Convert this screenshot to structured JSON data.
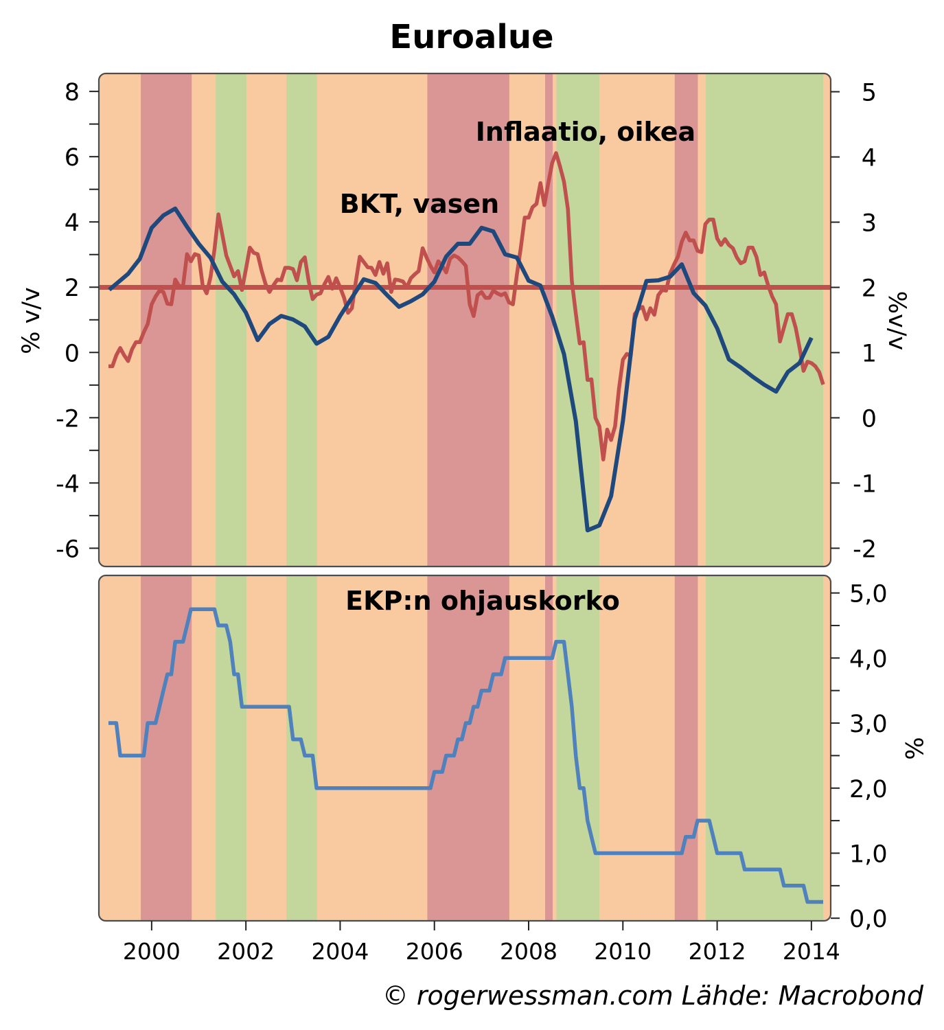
{
  "title": "Euroalue",
  "footer": "© rogerwessman.com Lähde: Macrobond",
  "chart_data": [
    {
      "type": "line",
      "panel": "upper",
      "title": "Euroalue",
      "grid": false,
      "xlim": [
        1998.88,
        2014.41
      ],
      "y_left": {
        "label": "% v/v",
        "lim": [
          -6.56,
          8.55
        ],
        "ticks": [
          -6,
          -4,
          -2,
          0,
          2,
          4,
          6,
          8
        ],
        "tick_labels": [
          "-6",
          "-4",
          "-2",
          "0",
          "2",
          "4",
          "6",
          "8"
        ],
        "minor_ticks": [
          -5,
          -3,
          -1,
          1,
          3,
          5,
          7
        ]
      },
      "y_right": {
        "label": "%v/v",
        "lim": [
          -2.28,
          5.28
        ],
        "ticks": [
          -2,
          -1,
          0,
          1,
          2,
          3,
          4,
          5
        ],
        "tick_labels": [
          "-2",
          "-1",
          "0",
          "1",
          "2",
          "3",
          "4",
          "5"
        ]
      },
      "annotations": [
        {
          "text": "Inflaatio, oikea",
          "color": "#C0504D"
        },
        {
          "text": "BKT, vasen",
          "color": "#1F497D"
        }
      ],
      "reference_lines": [
        {
          "axis": "right",
          "value": 2.0,
          "color": "#C0504D"
        }
      ],
      "series": [
        {
          "name": "BKT, vasen",
          "axis": "left",
          "color": "#1F497D",
          "frequency": "quarterly",
          "x": [
            1999.1,
            1999.5,
            1999.75,
            2000.0,
            2000.25,
            2000.5,
            2000.75,
            2001.0,
            2001.25,
            2001.5,
            2001.75,
            2002.0,
            2002.25,
            2002.5,
            2002.75,
            2003.0,
            2003.25,
            2003.5,
            2003.75,
            2004.0,
            2004.25,
            2004.5,
            2004.75,
            2005.0,
            2005.25,
            2005.5,
            2005.75,
            2006.0,
            2006.25,
            2006.5,
            2006.75,
            2007.0,
            2007.25,
            2007.5,
            2007.75,
            2008.0,
            2008.25,
            2008.5,
            2008.75,
            2009.0,
            2009.25,
            2009.5,
            2009.75,
            2010.0,
            2010.25,
            2010.5,
            2010.75,
            2011.0,
            2011.25,
            2011.5,
            2011.75,
            2012.0,
            2012.25,
            2012.5,
            2012.75,
            2013.0,
            2013.25,
            2013.5,
            2013.75,
            2014.0
          ],
          "y": [
            1.92,
            2.41,
            2.87,
            3.82,
            4.2,
            4.41,
            3.85,
            3.33,
            2.9,
            2.17,
            1.78,
            1.22,
            0.38,
            0.87,
            1.12,
            1.01,
            0.8,
            0.27,
            0.48,
            1.12,
            1.68,
            2.24,
            2.13,
            1.75,
            1.4,
            1.57,
            1.78,
            2.17,
            2.94,
            3.33,
            3.33,
            3.82,
            3.71,
            3.01,
            2.91,
            2.2,
            2.05,
            1.1,
            -0.05,
            -2.1,
            -5.45,
            -5.3,
            -4.4,
            -2.1,
            1.02,
            2.19,
            2.21,
            2.32,
            2.7,
            1.82,
            1.44,
            0.74,
            -0.21,
            -0.46,
            -0.74,
            -0.99,
            -1.2,
            -0.6,
            -0.32,
            0.45
          ]
        },
        {
          "name": "Inflaatio, oikea",
          "axis": "right",
          "color": "#C0504D",
          "frequency": "monthly",
          "start": "1999-01",
          "values": [
            0.79,
            0.79,
            0.96,
            1.07,
            0.96,
            0.87,
            1.05,
            1.16,
            1.16,
            1.31,
            1.44,
            1.74,
            1.86,
            1.95,
            1.93,
            1.75,
            1.74,
            2.12,
            2.02,
            2.02,
            2.51,
            2.4,
            2.51,
            2.49,
            2.03,
            1.91,
            2.16,
            2.58,
            3.12,
            2.81,
            2.49,
            2.33,
            2.17,
            2.25,
            1.96,
            2.28,
            2.61,
            2.53,
            2.51,
            2.26,
            2.05,
            1.93,
            2.03,
            2.12,
            2.11,
            2.3,
            2.3,
            2.28,
            2.11,
            2.39,
            2.46,
            2.09,
            1.82,
            1.89,
            1.91,
            2.05,
            2.16,
            1.98,
            2.14,
            2.0,
            1.84,
            1.61,
            1.68,
            2.09,
            2.47,
            2.39,
            2.31,
            2.3,
            2.19,
            2.39,
            2.21,
            2.37,
            1.93,
            2.12,
            2.11,
            2.09,
            2.0,
            2.14,
            2.2,
            2.25,
            2.6,
            2.46,
            2.33,
            2.23,
            2.4,
            2.33,
            2.23,
            2.44,
            2.49,
            2.46,
            2.4,
            2.33,
            1.74,
            1.56,
            1.88,
            1.93,
            1.84,
            1.84,
            1.95,
            1.91,
            1.88,
            1.91,
            1.77,
            1.74,
            2.19,
            2.61,
            3.07,
            3.07,
            3.23,
            3.28,
            3.6,
            3.26,
            3.6,
            3.91,
            4.06,
            3.85,
            3.62,
            3.2,
            2.1,
            1.6,
            1.14,
            1.16,
            0.58,
            0.59,
            0.0,
            -0.13,
            -0.64,
            -0.18,
            -0.34,
            -0.13,
            0.45,
            0.89,
            0.98,
            0.95,
            1.59,
            1.67,
            1.7,
            1.51,
            1.68,
            1.58,
            1.88,
            1.96,
            1.95,
            2.21,
            2.35,
            2.47,
            2.7,
            2.84,
            2.72,
            2.72,
            2.56,
            2.54,
            2.97,
            3.04,
            3.04,
            2.75,
            2.65,
            2.74,
            2.65,
            2.6,
            2.46,
            2.37,
            2.4,
            2.61,
            2.61,
            2.47,
            2.19,
            2.23,
            2.03,
            1.86,
            1.74,
            1.17,
            1.38,
            1.59,
            1.59,
            1.38,
            1.07,
            0.72,
            0.86,
            0.84,
            0.79,
            0.7,
            0.51
          ]
        }
      ],
      "bands": [
        {
          "from": 1998.88,
          "to": 1999.77,
          "color": "#F9C9A0"
        },
        {
          "from": 1999.77,
          "to": 2000.85,
          "color": "#D99694"
        },
        {
          "from": 2000.85,
          "to": 2001.36,
          "color": "#F9C9A0"
        },
        {
          "from": 2001.36,
          "to": 2002.01,
          "color": "#C3D69B"
        },
        {
          "from": 2002.01,
          "to": 2002.86,
          "color": "#F9C9A0"
        },
        {
          "from": 2002.86,
          "to": 2003.51,
          "color": "#C3D69B"
        },
        {
          "from": 2003.51,
          "to": 2005.85,
          "color": "#F9C9A0"
        },
        {
          "from": 2005.85,
          "to": 2007.59,
          "color": "#D99694"
        },
        {
          "from": 2007.59,
          "to": 2008.35,
          "color": "#F9C9A0"
        },
        {
          "from": 2008.35,
          "to": 2008.51,
          "color": "#D99694"
        },
        {
          "from": 2008.51,
          "to": 2008.59,
          "color": "#F9C9A0"
        },
        {
          "from": 2008.59,
          "to": 2009.5,
          "color": "#C3D69B"
        },
        {
          "from": 2009.5,
          "to": 2011.1,
          "color": "#F9C9A0"
        },
        {
          "from": 2011.1,
          "to": 2011.59,
          "color": "#D99694"
        },
        {
          "from": 2011.59,
          "to": 2011.76,
          "color": "#F9C9A0"
        },
        {
          "from": 2011.76,
          "to": 2014.25,
          "color": "#C3D69B"
        },
        {
          "from": 2014.25,
          "to": 2014.41,
          "color": "#F9C9A0"
        }
      ]
    },
    {
      "type": "line",
      "panel": "lower",
      "title": "EKP:n ohjauskorko",
      "grid": false,
      "xlim": [
        1998.88,
        2014.41
      ],
      "x_ticks": [
        2000,
        2002,
        2004,
        2006,
        2008,
        2010,
        2012,
        2014
      ],
      "x_tick_labels": [
        "2000",
        "2002",
        "2004",
        "2006",
        "2008",
        "2010",
        "2012",
        "2014"
      ],
      "y_right": {
        "label": "%",
        "lim": [
          -0.04,
          5.27
        ],
        "ticks": [
          0,
          1,
          2,
          3,
          4,
          5
        ],
        "tick_labels": [
          "0,0",
          "1,0",
          "2,0",
          "3,0",
          "4,0",
          "5,0"
        ],
        "minor_ticks": [
          0.5,
          1.5,
          2.5,
          3.5,
          4.5
        ]
      },
      "annotations": [
        {
          "text": "EKP:n ohjauskorko",
          "color": "#4F81BD"
        }
      ],
      "series": [
        {
          "name": "EKP:n ohjauskorko",
          "axis": "right",
          "color": "#4F81BD",
          "frequency": "monthly",
          "start": "1999-01",
          "values": [
            3.0,
            3.0,
            3.0,
            2.5,
            2.5,
            2.5,
            2.5,
            2.5,
            2.5,
            2.5,
            3.0,
            3.0,
            3.0,
            3.25,
            3.5,
            3.75,
            3.75,
            4.25,
            4.25,
            4.25,
            4.5,
            4.75,
            4.75,
            4.75,
            4.75,
            4.75,
            4.75,
            4.75,
            4.5,
            4.5,
            4.5,
            4.25,
            3.75,
            3.75,
            3.25,
            3.25,
            3.25,
            3.25,
            3.25,
            3.25,
            3.25,
            3.25,
            3.25,
            3.25,
            3.25,
            3.25,
            3.25,
            2.75,
            2.75,
            2.75,
            2.5,
            2.5,
            2.5,
            2.0,
            2.0,
            2.0,
            2.0,
            2.0,
            2.0,
            2.0,
            2.0,
            2.0,
            2.0,
            2.0,
            2.0,
            2.0,
            2.0,
            2.0,
            2.0,
            2.0,
            2.0,
            2.0,
            2.0,
            2.0,
            2.0,
            2.0,
            2.0,
            2.0,
            2.0,
            2.0,
            2.0,
            2.0,
            2.0,
            2.25,
            2.25,
            2.25,
            2.5,
            2.5,
            2.5,
            2.75,
            2.75,
            3.0,
            3.0,
            3.25,
            3.25,
            3.5,
            3.5,
            3.5,
            3.75,
            3.75,
            3.75,
            4.0,
            4.0,
            4.0,
            4.0,
            4.0,
            4.0,
            4.0,
            4.0,
            4.0,
            4.0,
            4.0,
            4.0,
            4.0,
            4.25,
            4.25,
            4.25,
            3.75,
            3.25,
            2.5,
            2.0,
            2.0,
            1.5,
            1.25,
            1.0,
            1.0,
            1.0,
            1.0,
            1.0,
            1.0,
            1.0,
            1.0,
            1.0,
            1.0,
            1.0,
            1.0,
            1.0,
            1.0,
            1.0,
            1.0,
            1.0,
            1.0,
            1.0,
            1.0,
            1.0,
            1.0,
            1.0,
            1.25,
            1.25,
            1.25,
            1.5,
            1.5,
            1.5,
            1.5,
            1.25,
            1.0,
            1.0,
            1.0,
            1.0,
            1.0,
            1.0,
            1.0,
            0.75,
            0.75,
            0.75,
            0.75,
            0.75,
            0.75,
            0.75,
            0.75,
            0.75,
            0.75,
            0.5,
            0.5,
            0.5,
            0.5,
            0.5,
            0.5,
            0.25,
            0.25,
            0.25,
            0.25,
            0.25
          ]
        }
      ],
      "bands": [
        {
          "from": 1998.88,
          "to": 1999.77,
          "color": "#F9C9A0"
        },
        {
          "from": 1999.77,
          "to": 2000.85,
          "color": "#D99694"
        },
        {
          "from": 2000.85,
          "to": 2001.36,
          "color": "#F9C9A0"
        },
        {
          "from": 2001.36,
          "to": 2002.01,
          "color": "#C3D69B"
        },
        {
          "from": 2002.01,
          "to": 2002.86,
          "color": "#F9C9A0"
        },
        {
          "from": 2002.86,
          "to": 2003.51,
          "color": "#C3D69B"
        },
        {
          "from": 2003.51,
          "to": 2005.85,
          "color": "#F9C9A0"
        },
        {
          "from": 2005.85,
          "to": 2007.59,
          "color": "#D99694"
        },
        {
          "from": 2007.59,
          "to": 2008.35,
          "color": "#F9C9A0"
        },
        {
          "from": 2008.35,
          "to": 2008.51,
          "color": "#D99694"
        },
        {
          "from": 2008.51,
          "to": 2008.59,
          "color": "#F9C9A0"
        },
        {
          "from": 2008.59,
          "to": 2009.5,
          "color": "#C3D69B"
        },
        {
          "from": 2009.5,
          "to": 2011.1,
          "color": "#F9C9A0"
        },
        {
          "from": 2011.1,
          "to": 2011.59,
          "color": "#D99694"
        },
        {
          "from": 2011.59,
          "to": 2011.76,
          "color": "#F9C9A0"
        },
        {
          "from": 2011.76,
          "to": 2014.25,
          "color": "#C3D69B"
        },
        {
          "from": 2014.25,
          "to": 2014.41,
          "color": "#F9C9A0"
        }
      ]
    }
  ]
}
